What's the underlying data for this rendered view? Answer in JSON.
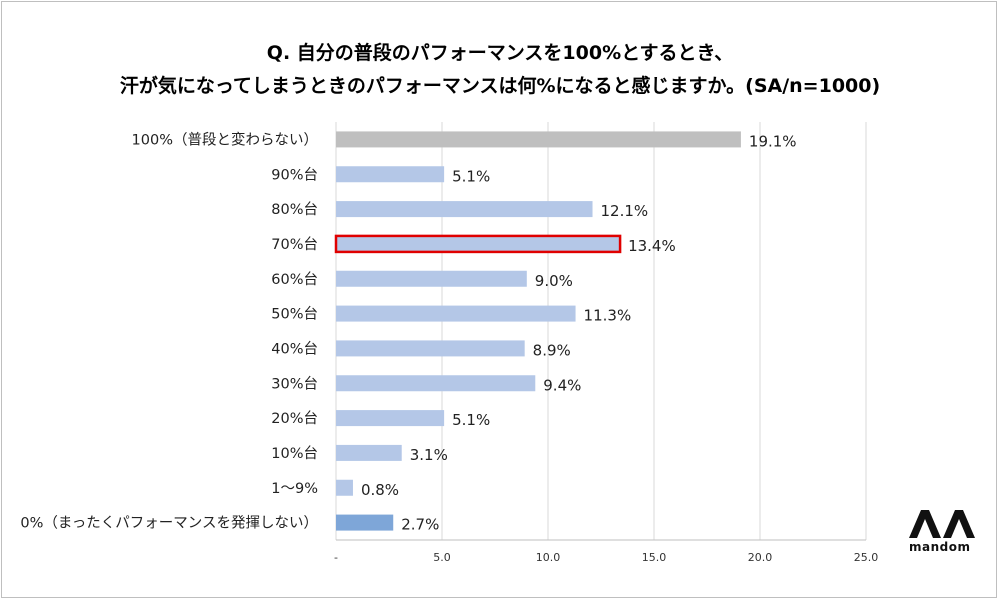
{
  "title_line1": "Q. 自分の普段のパフォーマンスを100%とするとき、",
  "title_line2": "汗が気になってしまうときのパフォーマンスは何%になると感じますか。(SA/n=1000)",
  "logo_text": "mandom",
  "colors": {
    "bar": "#b4c7e7",
    "bar_first": "#bfbfbf",
    "bar_last": "#7ea6d8",
    "highlight_border": "#e00000",
    "grid": "#d9d9d9"
  },
  "chart_data": {
    "type": "bar",
    "orientation": "horizontal",
    "categories": [
      "100%（普段と変わらない）",
      "90%台",
      "80%台",
      "70%台",
      "60%台",
      "50%台",
      "40%台",
      "30%台",
      "20%台",
      "10%台",
      "1〜9%",
      "0%（まったくパフォーマンスを発揮しない）"
    ],
    "values": [
      19.1,
      5.1,
      12.1,
      13.4,
      9.0,
      11.3,
      8.9,
      9.4,
      5.1,
      3.1,
      0.8,
      2.7
    ],
    "value_labels": [
      "19.1%",
      "5.1%",
      "12.1%",
      "13.4%",
      "9.0%",
      "11.3%",
      "8.9%",
      "9.4%",
      "5.1%",
      "3.1%",
      "0.8%",
      "2.7%"
    ],
    "highlighted_category": "70%台",
    "xlim": [
      0,
      25
    ],
    "x_ticks": [
      "-",
      "5.0",
      "10.0",
      "15.0",
      "20.0",
      "25.0"
    ],
    "grid": true
  }
}
